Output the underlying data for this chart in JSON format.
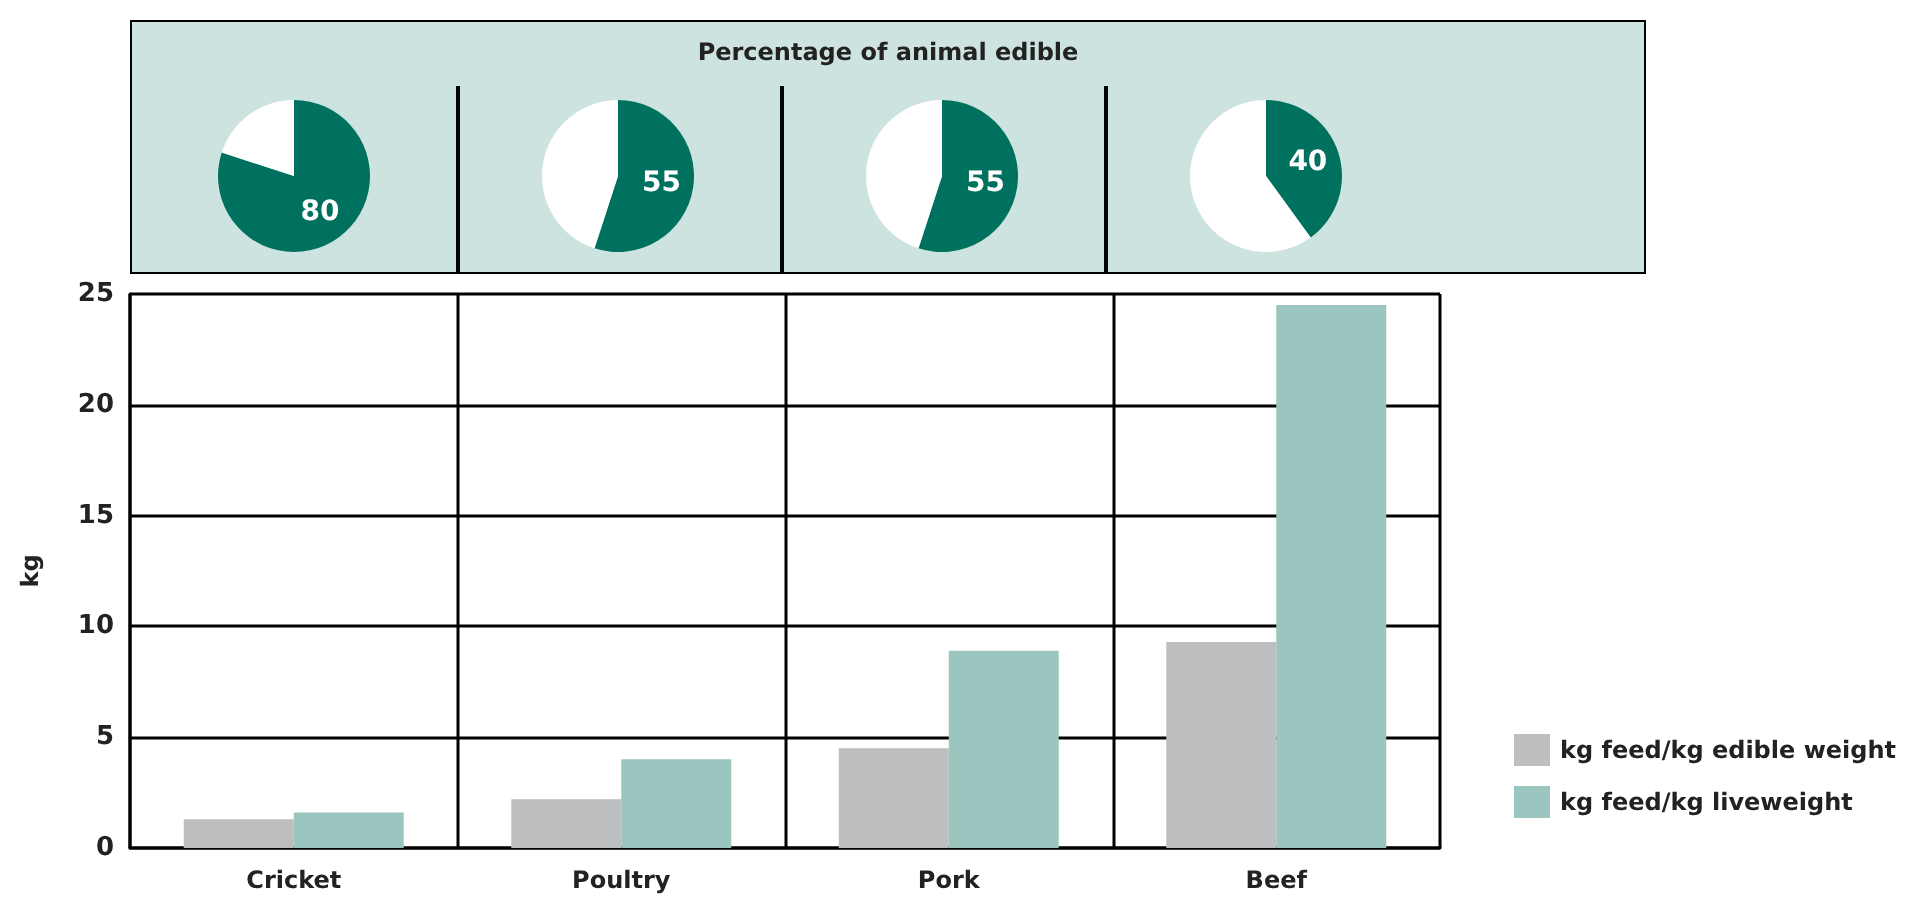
{
  "chart_data": [
    {
      "type": "other",
      "title": "Percentage of animal edible"
    },
    {
      "type": "pie",
      "categories": [
        null,
        null
      ],
      "values": [
        80,
        20
      ],
      "colors": [
        "#00715f",
        "#ffffff"
      ],
      "value_labels": [
        "80",
        null
      ]
    },
    {
      "type": "pie",
      "categories": [
        null,
        null
      ],
      "values": [
        55,
        45
      ],
      "colors": [
        "#00715f",
        "#ffffff"
      ],
      "value_labels": [
        "55",
        null
      ]
    },
    {
      "type": "pie",
      "categories": [
        null,
        null
      ],
      "values": [
        55,
        45
      ],
      "colors": [
        "#00715f",
        "#ffffff"
      ],
      "value_labels": [
        "55",
        null
      ]
    },
    {
      "type": "pie",
      "categories": [
        null,
        null
      ],
      "values": [
        40,
        60
      ],
      "colors": [
        "#00715f",
        "#ffffff"
      ],
      "value_labels": [
        "40",
        null
      ]
    },
    {
      "type": "bar",
      "categories": [
        "Cricket",
        "Poultry",
        "Pork",
        "Beef"
      ],
      "ylabel": "kg",
      "ylim": [
        0,
        25
      ],
      "yticks": [
        0,
        5,
        10,
        15,
        20,
        25
      ],
      "grid": true,
      "legend": "bottom right",
      "series": [
        {
          "name": "kg feed/kg edible weight",
          "color": "#bdbec0",
          "values": [
            1.3,
            2.2,
            4.5,
            9.3
          ]
        },
        {
          "name": "kg feed/kg liveweight",
          "color": "#9bc6c0",
          "values": [
            1.6,
            4.0,
            8.9,
            24.5
          ]
        }
      ]
    }
  ]
}
